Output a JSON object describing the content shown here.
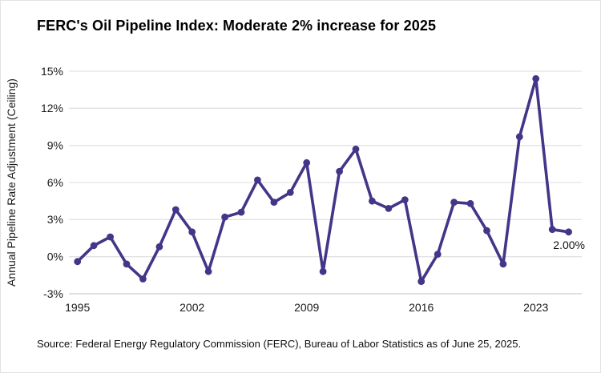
{
  "title": "FERC's Oil Pipeline Index: Moderate 2% increase for 2025",
  "source_note": "Source: Federal Energy Regulatory Commission (FERC), Bureau of Labor Statistics as of June 25, 2025.",
  "chart_data": {
    "type": "line",
    "title": "FERC's Oil Pipeline Index: Moderate 2% increase for 2025",
    "xlabel": "",
    "ylabel": "Annual Pipeline Rate Adjustment (Ceiling)",
    "ylim": [
      -3,
      15
    ],
    "xlim": [
      1995,
      2025
    ],
    "grid": true,
    "legend": "none",
    "y_ticks": [
      15,
      12,
      9,
      6,
      3,
      0,
      -3
    ],
    "y_tick_suffix": "%",
    "x_ticks": [
      1995,
      2002,
      2009,
      2016,
      2023
    ],
    "x": [
      1995,
      1996,
      1997,
      1998,
      1999,
      2000,
      2001,
      2002,
      2003,
      2004,
      2005,
      2006,
      2007,
      2008,
      2009,
      2010,
      2011,
      2012,
      2013,
      2014,
      2015,
      2016,
      2017,
      2018,
      2019,
      2020,
      2021,
      2022,
      2023,
      2024,
      2025
    ],
    "values": [
      -0.4,
      0.9,
      1.6,
      -0.6,
      -1.8,
      0.8,
      3.8,
      2.0,
      -1.2,
      3.2,
      3.6,
      6.2,
      4.4,
      5.2,
      7.6,
      -1.2,
      6.9,
      8.7,
      4.5,
      3.9,
      4.6,
      -2.0,
      0.2,
      4.4,
      4.3,
      2.1,
      -0.6,
      9.7,
      14.4,
      2.2,
      2.0
    ],
    "annotation": {
      "x": 2025,
      "value": 2.0,
      "text": "2.00%"
    },
    "colors": {
      "line": "#453589",
      "marker": "#453589",
      "grid": "#e3e3e3",
      "baseline": "#cfcfcf",
      "tick_text": "#1a1a1a",
      "annotation_text": "#111111"
    }
  }
}
